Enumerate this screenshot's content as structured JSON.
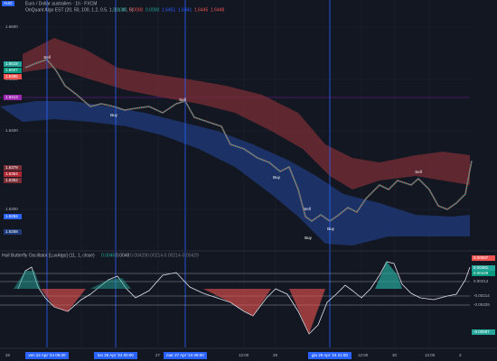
{
  "header": {
    "symbol_badge": "AUD",
    "title": "Euro / Dollar australien · 1h · FXCM",
    "indicator": "OnQuant Algo EST (20, 50, 100, 1.2, 0.5, 1, 10, 10, 5)",
    "indicator_values": [
      "0.0000",
      "0.0000",
      "0.0000",
      "1.6451",
      "1.6441",
      "1.6445",
      "1.6448"
    ]
  },
  "price_axis": {
    "labels": [
      "1.6600",
      "1.6500",
      "1.6400",
      "1.6300"
    ],
    "badges": [
      "1.6519",
      "1.6507",
      "1.6485",
      "1.6413",
      "1.6379",
      "1.6364",
      "1.6352",
      "1.6284",
      "1.6258"
    ]
  },
  "signals": [
    "Sell",
    "Buy",
    "Sell",
    "Buy",
    "Sell",
    "Buy",
    "Buy",
    "Sell"
  ],
  "oscillator": {
    "title": "Hull Butterfly Oscillator [LuxAlgo] (11, 1, close)",
    "values": [
      "0.0045",
      "0.0048",
      "0.00429",
      "0.00214",
      "-0.00214",
      "-0.00429"
    ],
    "axis_labels": [
      "0.00597",
      "0.00481",
      "0.00429",
      "0.00214",
      "-0.00214",
      "-0.00429",
      "-0.00597"
    ]
  },
  "time_axis": [
    "26",
    "ven 22 Apr '24 06:00",
    "lun 26 Apr '24 00:00",
    "27",
    "mar 27 Apr '24 09:00",
    "12:00",
    "29",
    "gio 29 Apr '24 21:00",
    "12:00",
    "30",
    "12:00",
    "3"
  ]
}
